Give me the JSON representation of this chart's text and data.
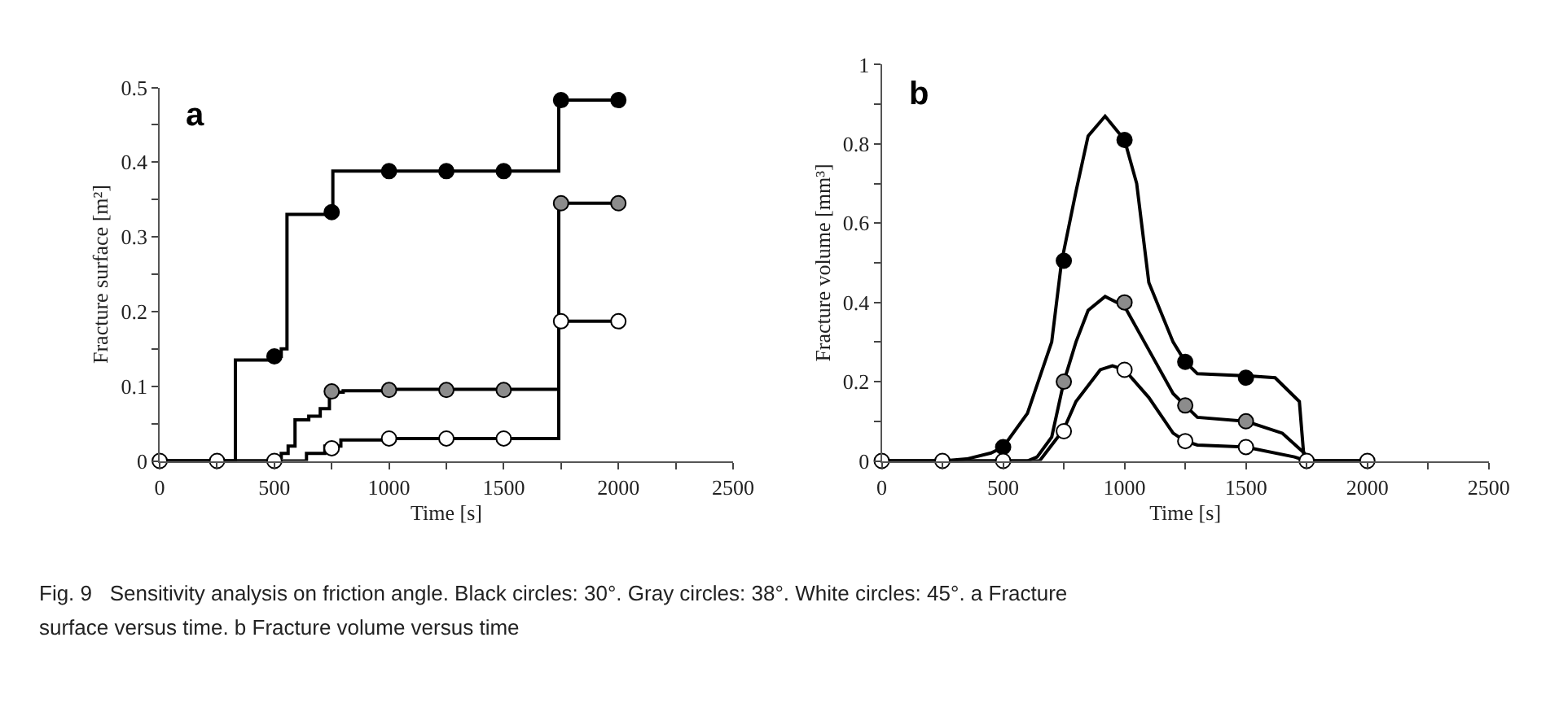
{
  "chart_data": [
    {
      "type": "step",
      "xlabel": "Time [s]",
      "ylabel": "Fracture surface [m²]",
      "annotations": [
        "a",
        "Fig. 9   Sensitivity analysis on friction angle. Black circles: 30°. Gray circles: 38°. White circles: 45°. a Fracture",
        "surface versus time. b Fracture volume versus time"
      ],
      "xlim": [
        0,
        2500
      ],
      "xticks": [
        0,
        {
          "value": 250,
          "label": null
        },
        500,
        {
          "value": 750,
          "label": null
        },
        1000,
        {
          "value": 1250,
          "label": null
        },
        1500,
        {
          "value": 1750,
          "label": null
        },
        2000,
        {
          "value": 2250,
          "label": null
        },
        2500
      ],
      "ylim": [
        0,
        0.5
      ],
      "yticks": [
        0,
        {
          "value": 0.05,
          "label": null
        },
        0.1,
        {
          "value": 0.15,
          "label": null
        },
        0.2,
        {
          "value": 0.25,
          "label": null
        },
        0.3,
        {
          "value": 0.35,
          "label": null
        },
        0.4,
        {
          "value": 0.45,
          "label": null
        },
        0.5
      ],
      "series": [
        {
          "color": "#000000",
          "marker": "none",
          "x": [
            0,
            330,
            510,
            530,
            555,
            745,
            755,
            1740,
            2000
          ],
          "values": [
            0,
            0.135,
            0.14,
            0.15,
            0.33,
            0.333,
            0.388,
            0.483,
            0.483
          ]
        },
        {
          "color": "#000000",
          "marker": "none",
          "x": [
            0,
            500,
            530,
            560,
            590,
            650,
            700,
            740,
            800,
            1000,
            1740,
            2000
          ],
          "values": [
            0,
            0.005,
            0.01,
            0.02,
            0.055,
            0.06,
            0.07,
            0.092,
            0.094,
            0.096,
            0.345,
            0.345
          ]
        },
        {
          "color": "#000000",
          "marker": "none",
          "x": [
            0,
            640,
            720,
            790,
            1000,
            1740,
            2000
          ],
          "values": [
            0,
            0.01,
            0.02,
            0.028,
            0.03,
            0.187,
            0.187
          ]
        },
        {
          "type": "scatter",
          "color": "#000000",
          "marker": "circle",
          "x": [
            500,
            750,
            1000,
            1250,
            1500,
            1750,
            2000
          ],
          "values": [
            0.14,
            0.333,
            0.388,
            0.388,
            0.388,
            0.483,
            0.483
          ]
        },
        {
          "type": "scatter",
          "color": "#8c8c8c",
          "marker": "circle",
          "x": [
            750,
            1000,
            1250,
            1500,
            1750,
            2000
          ],
          "values": [
            0.093,
            0.095,
            0.095,
            0.095,
            0.345,
            0.345
          ]
        },
        {
          "type": "scatter",
          "color": "#ffffff",
          "marker": "circle",
          "x": [
            0,
            250,
            500,
            750,
            1000,
            1250,
            1500,
            1750,
            2000
          ],
          "values": [
            0,
            0,
            0,
            0.017,
            0.03,
            0.03,
            0.03,
            0.187,
            0.187
          ]
        }
      ]
    },
    {
      "type": "line",
      "xlabel": "Time [s]",
      "ylabel": "Fracture volume [mm³]",
      "annotations": [
        "b"
      ],
      "xlim": [
        0,
        2500
      ],
      "xticks": [
        0,
        {
          "value": 250,
          "label": null
        },
        500,
        {
          "value": 750,
          "label": null
        },
        1000,
        {
          "value": 1250,
          "label": null
        },
        1500,
        {
          "value": 1750,
          "label": null
        },
        2000,
        {
          "value": 2250,
          "label": null
        },
        2500
      ],
      "ylim": [
        0,
        1
      ],
      "yticks": [
        0,
        {
          "value": 0.1,
          "label": null
        },
        0.2,
        {
          "value": 0.3,
          "label": null
        },
        0.4,
        {
          "value": 0.5,
          "label": null
        },
        0.6,
        {
          "value": 0.7,
          "label": null
        },
        0.8,
        {
          "value": 0.9,
          "label": null
        },
        1
      ],
      "series": [
        {
          "color": "#000000",
          "marker": "none",
          "x": [
            0,
            250,
            350,
            450,
            500,
            600,
            700,
            740,
            800,
            850,
            920,
            1000,
            1050,
            1100,
            1200,
            1250,
            1300,
            1500,
            1620,
            1720,
            1740,
            2000
          ],
          "values": [
            0,
            0,
            0.005,
            0.02,
            0.035,
            0.12,
            0.3,
            0.5,
            0.68,
            0.82,
            0.87,
            0.81,
            0.7,
            0.45,
            0.3,
            0.25,
            0.22,
            0.215,
            0.21,
            0.15,
            0,
            0
          ]
        },
        {
          "color": "#000000",
          "marker": "none",
          "x": [
            0,
            600,
            640,
            700,
            750,
            800,
            850,
            920,
            1000,
            1100,
            1200,
            1250,
            1300,
            1500,
            1650,
            1740,
            1760,
            2000
          ],
          "values": [
            0,
            0,
            0.01,
            0.06,
            0.2,
            0.3,
            0.38,
            0.415,
            0.39,
            0.28,
            0.17,
            0.14,
            0.11,
            0.1,
            0.07,
            0.02,
            0,
            0
          ]
        },
        {
          "color": "#000000",
          "marker": "none",
          "x": [
            0,
            650,
            700,
            750,
            800,
            900,
            950,
            1000,
            1100,
            1200,
            1250,
            1300,
            1500,
            1700,
            1750,
            2000
          ],
          "values": [
            0,
            0,
            0.04,
            0.08,
            0.15,
            0.23,
            0.24,
            0.23,
            0.16,
            0.07,
            0.05,
            0.04,
            0.035,
            0.01,
            0,
            0
          ]
        },
        {
          "type": "scatter",
          "color": "#000000",
          "marker": "circle",
          "x": [
            500,
            750,
            1000,
            1250,
            1500
          ],
          "values": [
            0.035,
            0.505,
            0.81,
            0.25,
            0.21
          ]
        },
        {
          "type": "scatter",
          "color": "#8c8c8c",
          "marker": "circle",
          "x": [
            750,
            1000,
            1250,
            1500
          ],
          "values": [
            0.2,
            0.4,
            0.14,
            0.1
          ]
        },
        {
          "type": "scatter",
          "color": "#ffffff",
          "marker": "circle",
          "x": [
            0,
            250,
            500,
            750,
            1000,
            1250,
            1500,
            1750,
            2000
          ],
          "values": [
            0,
            0,
            0,
            0.075,
            0.23,
            0.05,
            0.035,
            0,
            0
          ]
        }
      ]
    }
  ]
}
